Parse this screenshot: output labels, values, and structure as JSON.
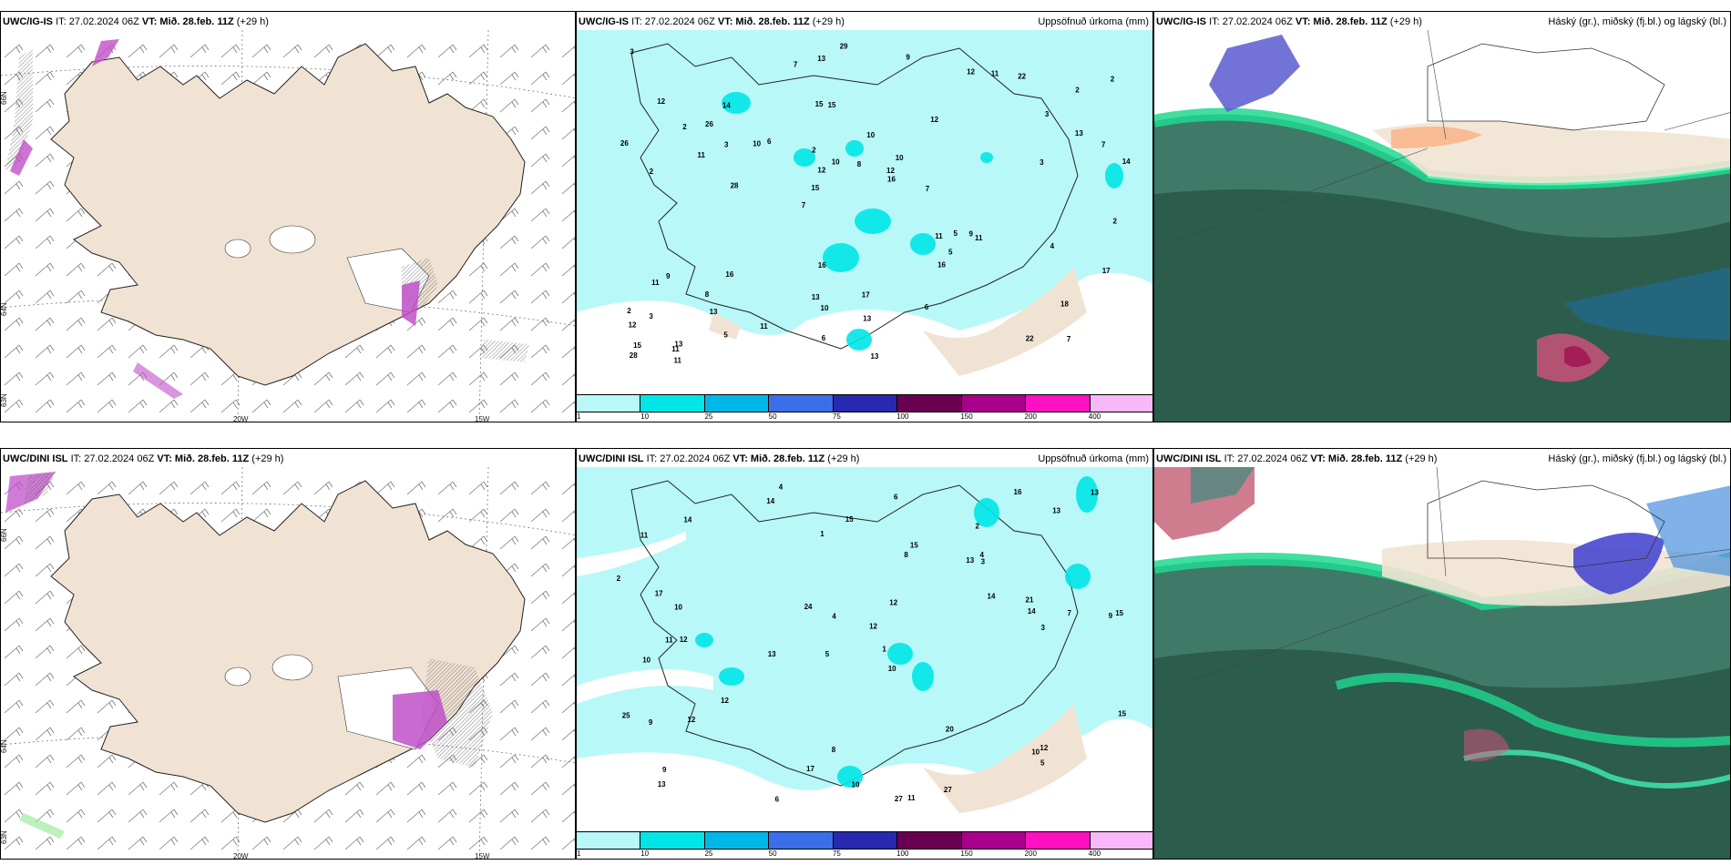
{
  "rows": [
    {
      "model": "UWC/IG-IS",
      "run": "IT: 27.02.2024 06Z",
      "vt_label": "VT:",
      "vt": "Mið. 28.feb. 11Z",
      "lead": "(+29 h)"
    },
    {
      "model": "UWC/DINI ISL",
      "run": "IT: 27.02.2024 06Z",
      "vt_label": "VT:",
      "vt": "Mið. 28.feb. 11Z",
      "lead": "(+29 h)"
    }
  ],
  "precip_title": "Uppsöfnuð úrkoma (mm)",
  "cloud_title": "Háský (gr.), miðský (fj.bl.) og lágský (bl.)",
  "axis": {
    "lon_20": "20W",
    "lon_15": "15W",
    "lat_66": "66N",
    "lat_64": "64N",
    "lat_63": "63N",
    "lat_65": "65N"
  },
  "colorbar": {
    "ticks": [
      "1",
      "10",
      "25",
      "50",
      "75",
      "100",
      "150",
      "200",
      "400"
    ],
    "colors": [
      "#b8f8f8",
      "#00e6e6",
      "#00b8e8",
      "#3a6fe8",
      "#2828b0",
      "#6a0050",
      "#a8008a",
      "#ff10c0",
      "#f8b8f8"
    ]
  },
  "precip_values_top": [
    "7",
    "2",
    "2",
    "7",
    "12",
    "13",
    "15",
    "10",
    "9",
    "6",
    "12",
    "13",
    "15",
    "10",
    "11",
    "12",
    "13",
    "14",
    "11",
    "13",
    "15",
    "13",
    "12",
    "14",
    "12",
    "16",
    "22",
    "18",
    "9",
    "13",
    "10",
    "11",
    "16",
    "5",
    "7",
    "12",
    "15",
    "10",
    "16",
    "11",
    "3",
    "2",
    "5",
    "6",
    "8",
    "11",
    "28",
    "17",
    "22",
    "29",
    "28",
    "26",
    "26",
    "11",
    "11",
    "9",
    "7",
    "10",
    "17",
    "16",
    "11",
    "5",
    "3",
    "2",
    "3",
    "2",
    "2",
    "2",
    "13",
    "8",
    "3",
    "7",
    "4",
    "6",
    "3"
  ],
  "precip_values_bottom": [
    "4",
    "2",
    "9",
    "5",
    "10",
    "12",
    "11",
    "13",
    "10",
    "8",
    "12",
    "13",
    "14",
    "13",
    "27",
    "11",
    "8",
    "16",
    "14",
    "12",
    "10",
    "11",
    "15",
    "7",
    "25",
    "17",
    "4",
    "14",
    "12",
    "9",
    "10",
    "15",
    "12",
    "24",
    "20",
    "15",
    "21",
    "17",
    "13",
    "15",
    "9",
    "6",
    "27",
    "14",
    "10",
    "3",
    "5",
    "4",
    "2",
    "1",
    "1",
    "3",
    "12",
    "13",
    "6"
  ]
}
